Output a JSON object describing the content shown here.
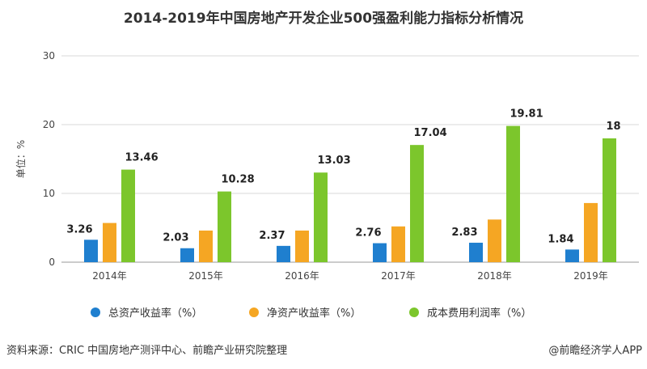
{
  "title": "2014-2019年中国房地产开发企业500强盈利能力指标分析情况",
  "chart_data": {
    "type": "bar",
    "title": "2014-2019年中国房地产开发企业500强盈利能力指标分析情况",
    "ylabel": "单位：%",
    "xlabel": "",
    "ylim": [
      0,
      30
    ],
    "yticks": [
      "0",
      "10",
      "20",
      "30"
    ],
    "grid": true,
    "legend_position": "bottom",
    "categories": [
      "2014年",
      "2015年",
      "2016年",
      "2017年",
      "2018年",
      "2019年"
    ],
    "series": [
      {
        "name": "总资产收益率（%）",
        "color": "#1f7fcf",
        "values": [
          3.26,
          2.03,
          2.37,
          2.76,
          2.83,
          1.84
        ],
        "labels": [
          "3.26",
          "2.03",
          "2.37",
          "2.76",
          "2.83",
          "1.84"
        ]
      },
      {
        "name": "净资产收益率（%）",
        "color": "#f5a623",
        "values": [
          5.7,
          4.6,
          4.6,
          5.2,
          6.2,
          8.6
        ],
        "labels": null
      },
      {
        "name": "成本费用利润率（%）",
        "color": "#7cc62c",
        "values": [
          13.46,
          10.28,
          13.03,
          17.04,
          19.81,
          18
        ],
        "labels": [
          "13.46",
          "10.28",
          "13.03",
          "17.04",
          "19.81",
          "18"
        ]
      }
    ]
  },
  "footer": {
    "source": "资料来源：CRIC 中国房地产测评中心、前瞻产业研究院整理",
    "brand": "@前瞻经济学人APP"
  }
}
